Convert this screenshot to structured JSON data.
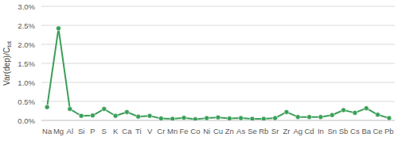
{
  "chart_data": {
    "type": "line",
    "y_label": "Var(dep)/Ctot",
    "categories": [
      "Na",
      "Mg",
      "Al",
      "Si",
      "P",
      "S",
      "K",
      "Ca",
      "Ti",
      "V",
      "Cr",
      "Mn",
      "Fe",
      "Co",
      "Ni",
      "Cu",
      "Zn",
      "As",
      "Se",
      "Rb",
      "Sr",
      "Zr",
      "Ag",
      "Cd",
      "In",
      "Sn",
      "Sb",
      "Cs",
      "Ba",
      "Ce",
      "Pb"
    ],
    "values": [
      0.35,
      2.42,
      0.3,
      0.12,
      0.13,
      0.3,
      0.12,
      0.22,
      0.1,
      0.12,
      0.05,
      0.04,
      0.07,
      0.03,
      0.06,
      0.08,
      0.05,
      0.06,
      0.04,
      0.04,
      0.06,
      0.22,
      0.09,
      0.09,
      0.09,
      0.14,
      0.27,
      0.2,
      0.32,
      0.15,
      0.06
    ],
    "color": "#3a9f58",
    "marker": "circle",
    "ylim": [
      0,
      3
    ],
    "yticks": [
      {
        "value": 0,
        "label": "0.0%"
      },
      {
        "value": 0.5,
        "label": "0.5%"
      },
      {
        "value": 1,
        "label": "1.0%"
      },
      {
        "value": 1.5,
        "label": "1.5%"
      },
      {
        "value": 2,
        "label": "2.0%"
      },
      {
        "value": 2.5,
        "label": "2.5%"
      },
      {
        "value": 3,
        "label": "3.0%"
      }
    ],
    "grid": true
  }
}
